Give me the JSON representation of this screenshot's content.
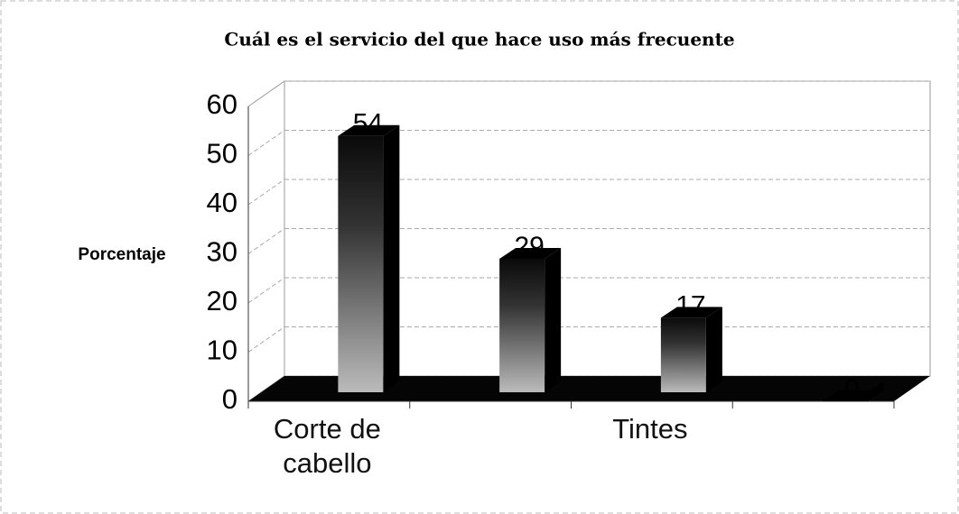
{
  "chart_data": {
    "type": "bar",
    "title": "Cuál es el servicio del que hace uso más frecuente",
    "y_label": "Porcentaje",
    "categories": [
      "Corte de cabello",
      null,
      "Tintes",
      null
    ],
    "values": [
      54,
      29,
      17,
      0
    ],
    "color": "#111111",
    "ylim": [
      0,
      60
    ],
    "yticks": [
      0,
      10,
      20,
      30,
      40,
      50,
      60
    ],
    "grid": true
  }
}
